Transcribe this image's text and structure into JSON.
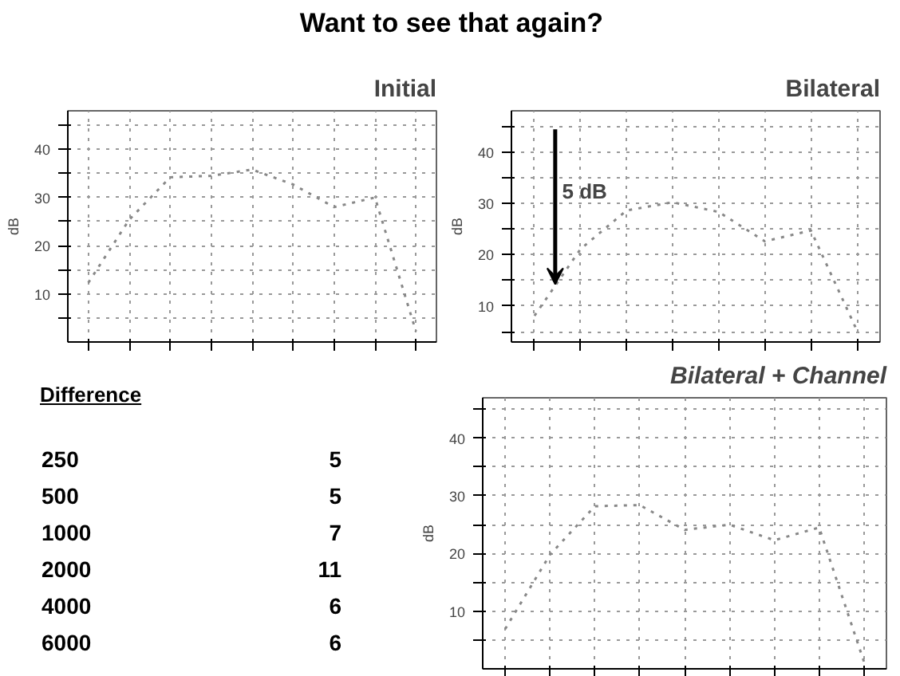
{
  "chart_data": [
    {
      "type": "other",
      "title": "Want to see that again?"
    },
    {
      "type": "line",
      "title": "Initial",
      "ylabel": "dB",
      "categories": [
        null,
        null,
        null,
        null,
        null,
        null,
        null,
        null,
        null
      ],
      "series": [
        {
          "color": "#888888",
          "values": [
            12.3,
            25.4,
            34.2,
            34.5,
            35.8,
            32.7,
            28,
            30,
            2.2
          ]
        }
      ],
      "ylim": [
        0,
        48
      ],
      "yticks": [
        {
          "value": 5,
          "label": null
        },
        10,
        {
          "value": 15,
          "label": null
        },
        20,
        {
          "value": 25,
          "label": null
        },
        30,
        {
          "value": 35,
          "label": null
        },
        40,
        {
          "value": 45,
          "label": null
        }
      ],
      "grid": true,
      "line_style": "dotted"
    },
    {
      "type": "line",
      "title": "Bilateral",
      "ylabel": "dB",
      "categories": [
        null,
        null,
        null,
        null,
        null,
        null,
        null,
        null
      ],
      "series": [
        {
          "color": "#888888",
          "values": [
            8.1,
            21.1,
            28.6,
            30.2,
            28.3,
            22.6,
            24.7,
            5.2
          ]
        }
      ],
      "ylim": [
        3,
        48
      ],
      "yticks": [
        {
          "value": 5,
          "label": null
        },
        10,
        {
          "value": 15,
          "label": null
        },
        20,
        {
          "value": 25,
          "label": null
        },
        30,
        {
          "value": 35,
          "label": null
        },
        40,
        {
          "value": 45,
          "label": null
        }
      ],
      "grid": true,
      "line_style": "dotted",
      "annotations": [
        "5 dB"
      ]
    },
    {
      "type": "other",
      "title": "Difference",
      "annotations": [
        "250",
        "5",
        "500",
        "5",
        "1000",
        "7",
        "2000",
        "11",
        "4000",
        "6",
        "6000",
        "6"
      ]
    },
    {
      "type": "line",
      "title": "Bilateral + Channel",
      "ylabel": "dB",
      "categories": [
        null,
        null,
        null,
        null,
        null,
        null,
        null,
        null,
        null
      ],
      "series": [
        {
          "color": "#888888",
          "values": [
            6.9,
            19.8,
            28.2,
            28.4,
            24.1,
            25.0,
            22.3,
            24.5,
            1.2
          ]
        }
      ],
      "ylim": [
        0,
        47
      ],
      "yticks": [
        {
          "value": 5,
          "label": null
        },
        10,
        {
          "value": 15,
          "label": null
        },
        20,
        {
          "value": 25,
          "label": null
        },
        30,
        {
          "value": 35,
          "label": null
        },
        40,
        {
          "value": 45,
          "label": null
        }
      ],
      "grid": true,
      "line_style": "dotted"
    }
  ]
}
